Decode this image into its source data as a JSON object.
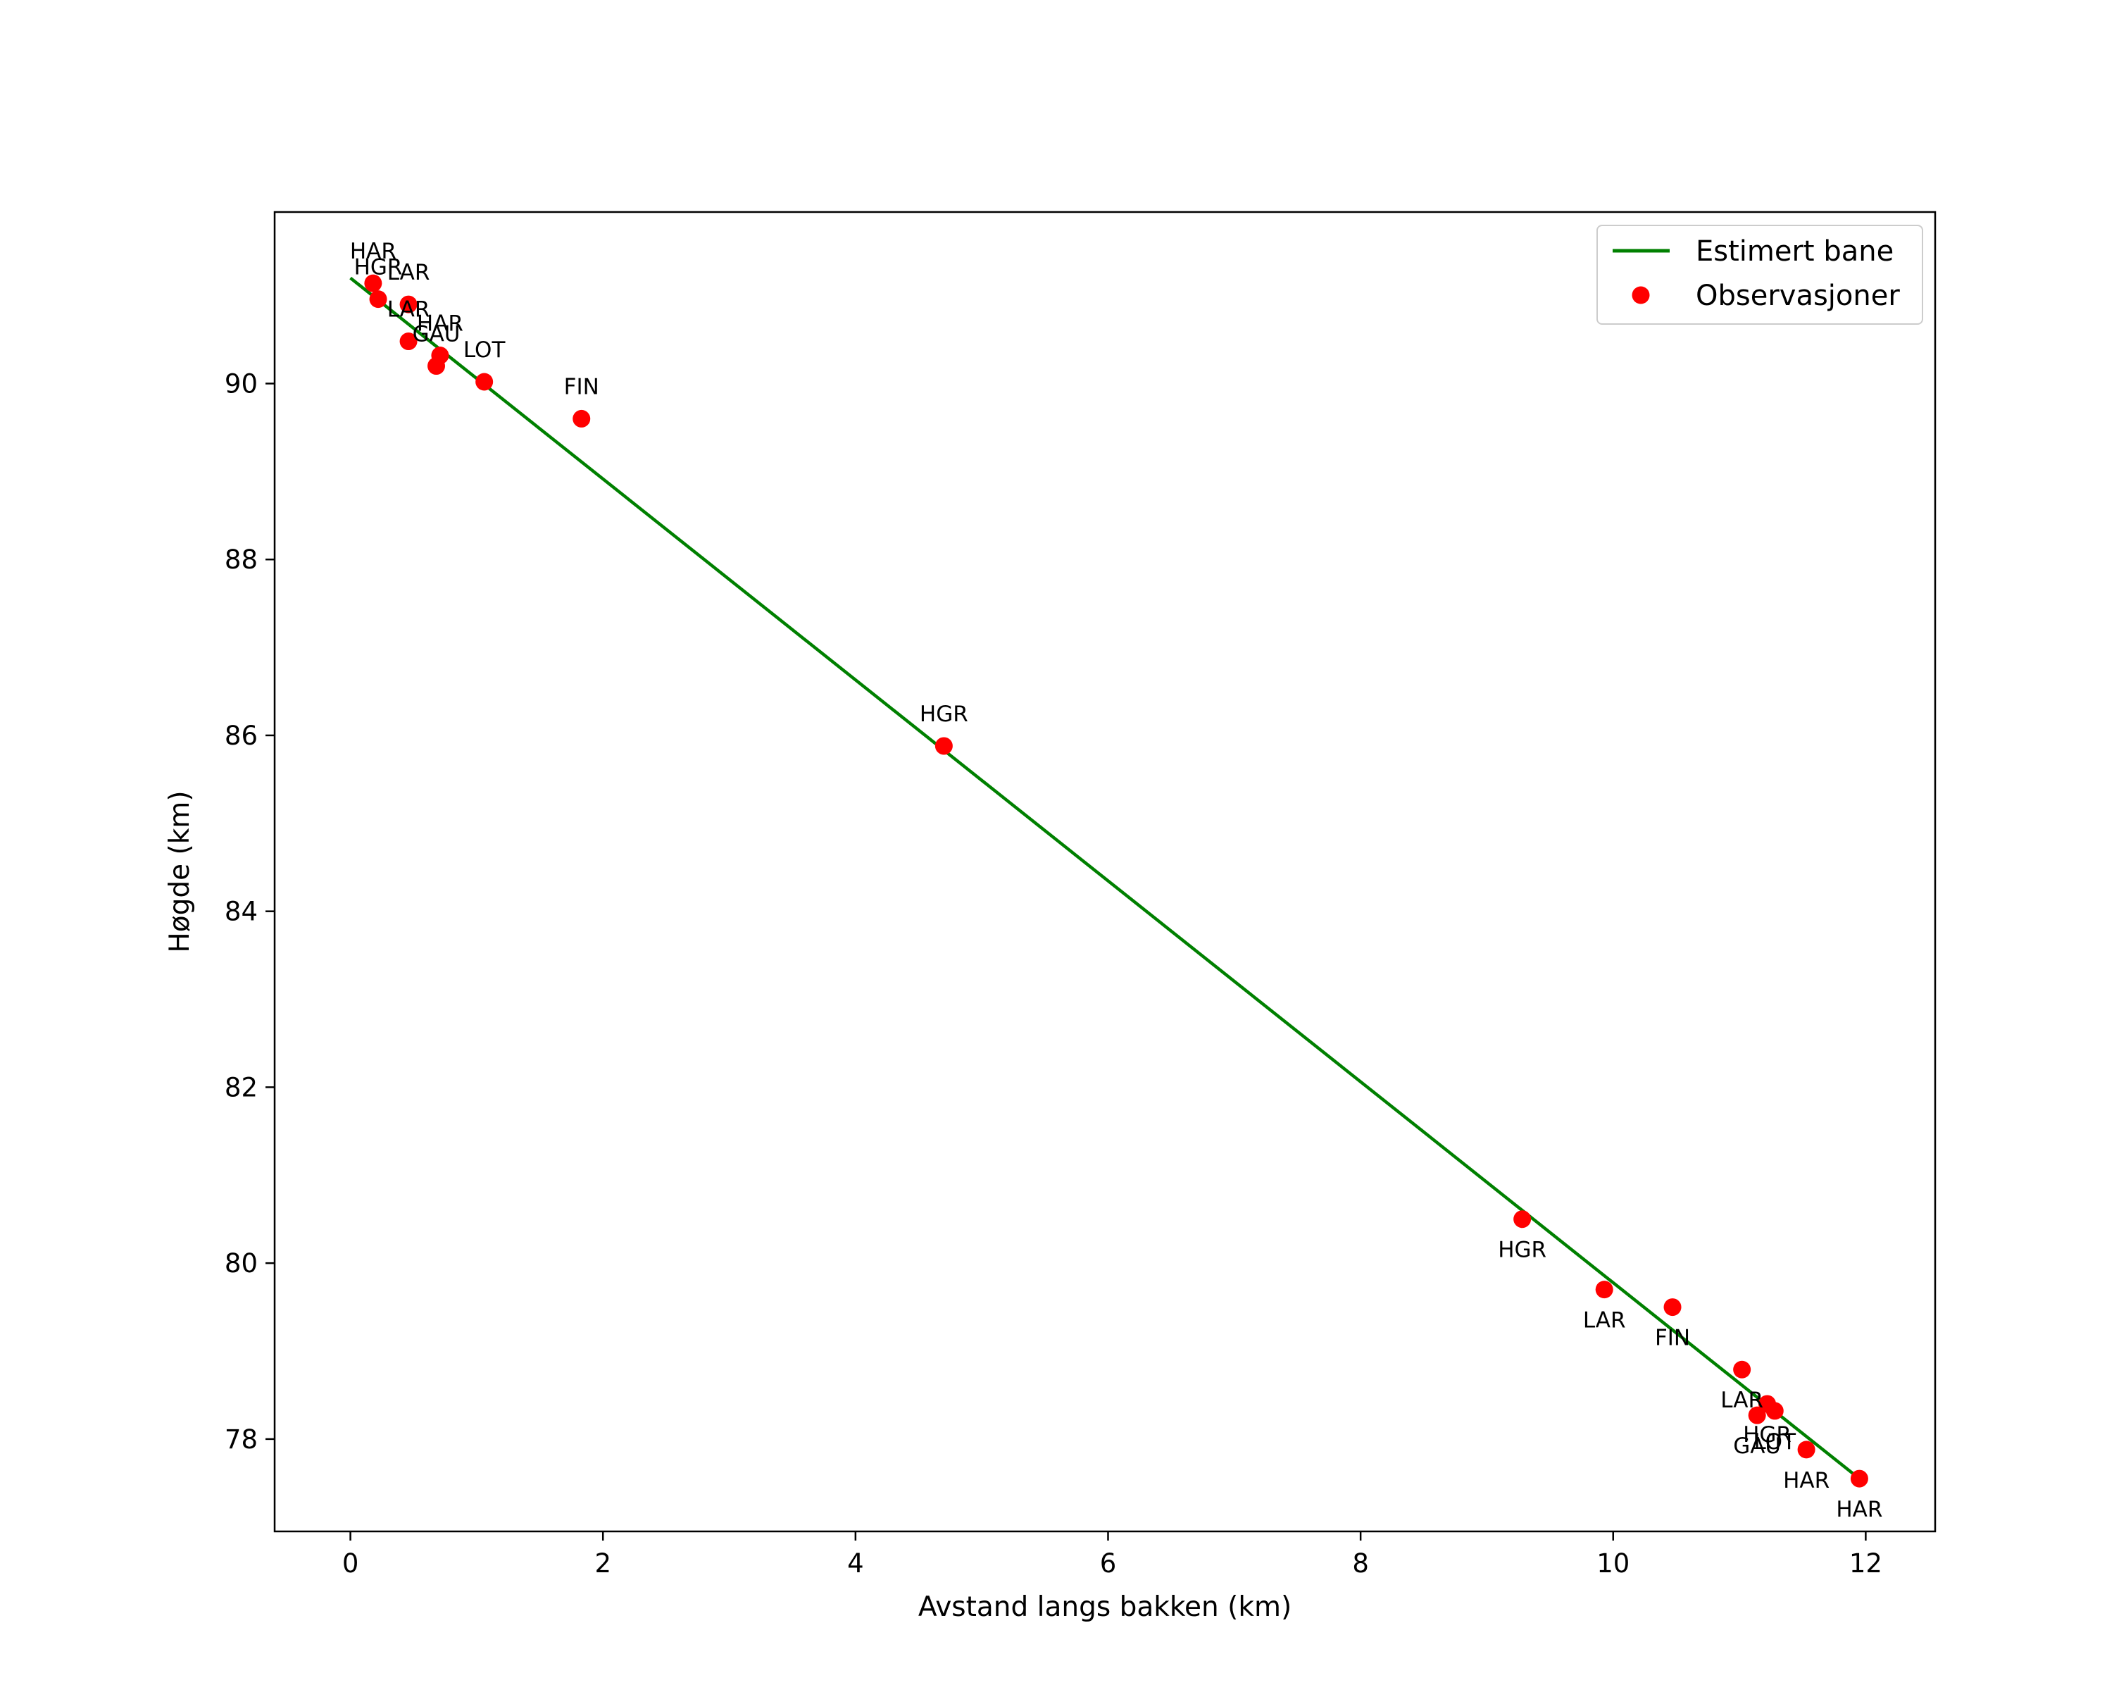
{
  "chart_data": {
    "type": "line",
    "title": "",
    "xlabel": "Avstand langs bakken (km)",
    "ylabel": "Høgde (km)",
    "xlim": [
      -0.6,
      12.55
    ],
    "ylim": [
      76.95,
      91.95
    ],
    "xticks": [
      0,
      2,
      4,
      6,
      8,
      10,
      12
    ],
    "yticks": [
      78,
      80,
      82,
      84,
      86,
      88,
      90
    ],
    "xtick_labels": [
      "0",
      "2",
      "4",
      "6",
      "8",
      "10",
      "12"
    ],
    "ytick_labels": [
      "78",
      "80",
      "82",
      "84",
      "86",
      "88",
      "90"
    ],
    "grid": false,
    "legend_position": "top-right",
    "colors": {
      "line": "#008000",
      "points": "#ff0000",
      "axes": "#000000"
    },
    "series": [
      {
        "name": "Estimert bane",
        "kind": "line",
        "x": [
          0.0,
          11.95
        ],
        "y": [
          91.2,
          77.55
        ]
      },
      {
        "name": "Observasjoner",
        "kind": "scatter",
        "points": [
          {
            "x": 0.18,
            "y": 91.14,
            "label": "HAR"
          },
          {
            "x": 0.22,
            "y": 90.96,
            "label": "HGR"
          },
          {
            "x": 0.46,
            "y": 90.9,
            "label": "LAR"
          },
          {
            "x": 0.46,
            "y": 90.48,
            "label": "LAR"
          },
          {
            "x": 0.71,
            "y": 90.32,
            "label": "HAR"
          },
          {
            "x": 0.68,
            "y": 90.2,
            "label": "GAU"
          },
          {
            "x": 1.06,
            "y": 90.02,
            "label": "LOT"
          },
          {
            "x": 1.83,
            "y": 89.6,
            "label": "FIN"
          },
          {
            "x": 4.7,
            "y": 85.88,
            "label": "HGR"
          },
          {
            "x": 9.28,
            "y": 80.5,
            "label": "HGR"
          },
          {
            "x": 9.93,
            "y": 79.7,
            "label": "LAR"
          },
          {
            "x": 10.47,
            "y": 79.5,
            "label": "FIN"
          },
          {
            "x": 11.02,
            "y": 78.79,
            "label": "LAR"
          },
          {
            "x": 11.22,
            "y": 78.4,
            "label": "HGR"
          },
          {
            "x": 11.28,
            "y": 78.32,
            "label": "LOT"
          },
          {
            "x": 11.14,
            "y": 78.27,
            "label": "GAU"
          },
          {
            "x": 11.53,
            "y": 77.88,
            "label": "HAR"
          },
          {
            "x": 11.95,
            "y": 77.55,
            "label": "HAR"
          }
        ]
      }
    ]
  }
}
